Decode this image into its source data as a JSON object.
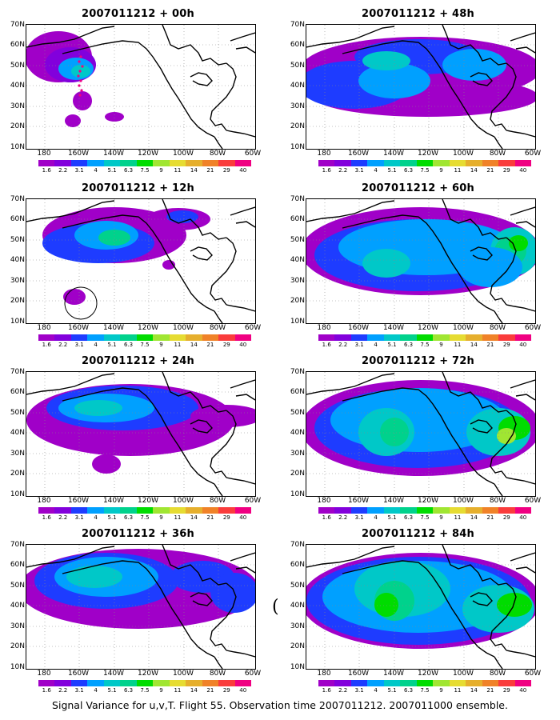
{
  "caption": "Signal Variance for u,v,T. Flight 55. Observation time 2007011212. 2007011000 ensemble.",
  "lat_labels": [
    "70N",
    "60N",
    "50N",
    "40N",
    "30N",
    "20N",
    "10N"
  ],
  "lon_labels": [
    "180",
    "160W",
    "140W",
    "120W",
    "100W",
    "80W",
    "60W"
  ],
  "colorbar": {
    "labels": [
      "1.6",
      "2.2",
      "3.1",
      "4",
      "5.1",
      "6.3",
      "7.5",
      "9",
      "11",
      "14",
      "21",
      "29",
      "40"
    ],
    "colors": [
      "#a000c8",
      "#8200dc",
      "#1e3cff",
      "#00a0ff",
      "#00c8c8",
      "#00d28c",
      "#00dc00",
      "#a0e632",
      "#e6dc32",
      "#e6af2d",
      "#f08228",
      "#fa3c3c",
      "#f00082"
    ]
  },
  "panels": [
    {
      "title": "2007011212 + 00h"
    },
    {
      "title": "2007011212 + 48h"
    },
    {
      "title": "2007011212 + 12h"
    },
    {
      "title": "2007011212 + 60h"
    },
    {
      "title": "2007011212 + 24h"
    },
    {
      "title": "2007011212 + 72h"
    },
    {
      "title": "2007011212 + 36h"
    },
    {
      "title": "2007011212 + 84h"
    }
  ],
  "stray_mark": "("
}
